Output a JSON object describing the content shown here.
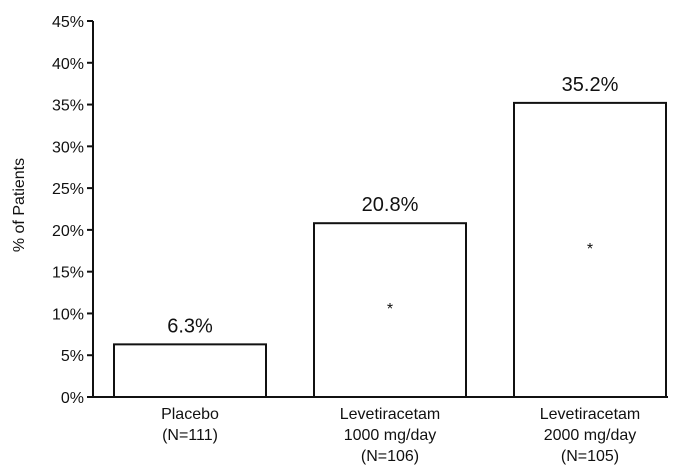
{
  "chart_data": {
    "type": "bar",
    "title": "",
    "xlabel": "",
    "ylabel": "% of Patients",
    "ylim": [
      0,
      45
    ],
    "yticks": [
      0,
      5,
      10,
      15,
      20,
      25,
      30,
      35,
      40,
      45
    ],
    "ytick_labels": [
      "0%",
      "5%",
      "10%",
      "15%",
      "20%",
      "25%",
      "30%",
      "35%",
      "40%",
      "45%"
    ],
    "grid": false,
    "legend": "none",
    "categories": [
      [
        "Placebo",
        "(N=111)"
      ],
      [
        "Levetiracetam",
        "1000 mg/day",
        "(N=106)"
      ],
      [
        "Levetiracetam",
        "2000 mg/day",
        "(N=105)"
      ]
    ],
    "values": [
      6.3,
      20.8,
      35.2
    ],
    "data_labels": [
      "6.3%",
      "20.8%",
      "35.2%"
    ],
    "significance_marks": [
      "",
      "*",
      "*"
    ],
    "bar_fill": "#ffffff",
    "bar_stroke": "#111111"
  }
}
